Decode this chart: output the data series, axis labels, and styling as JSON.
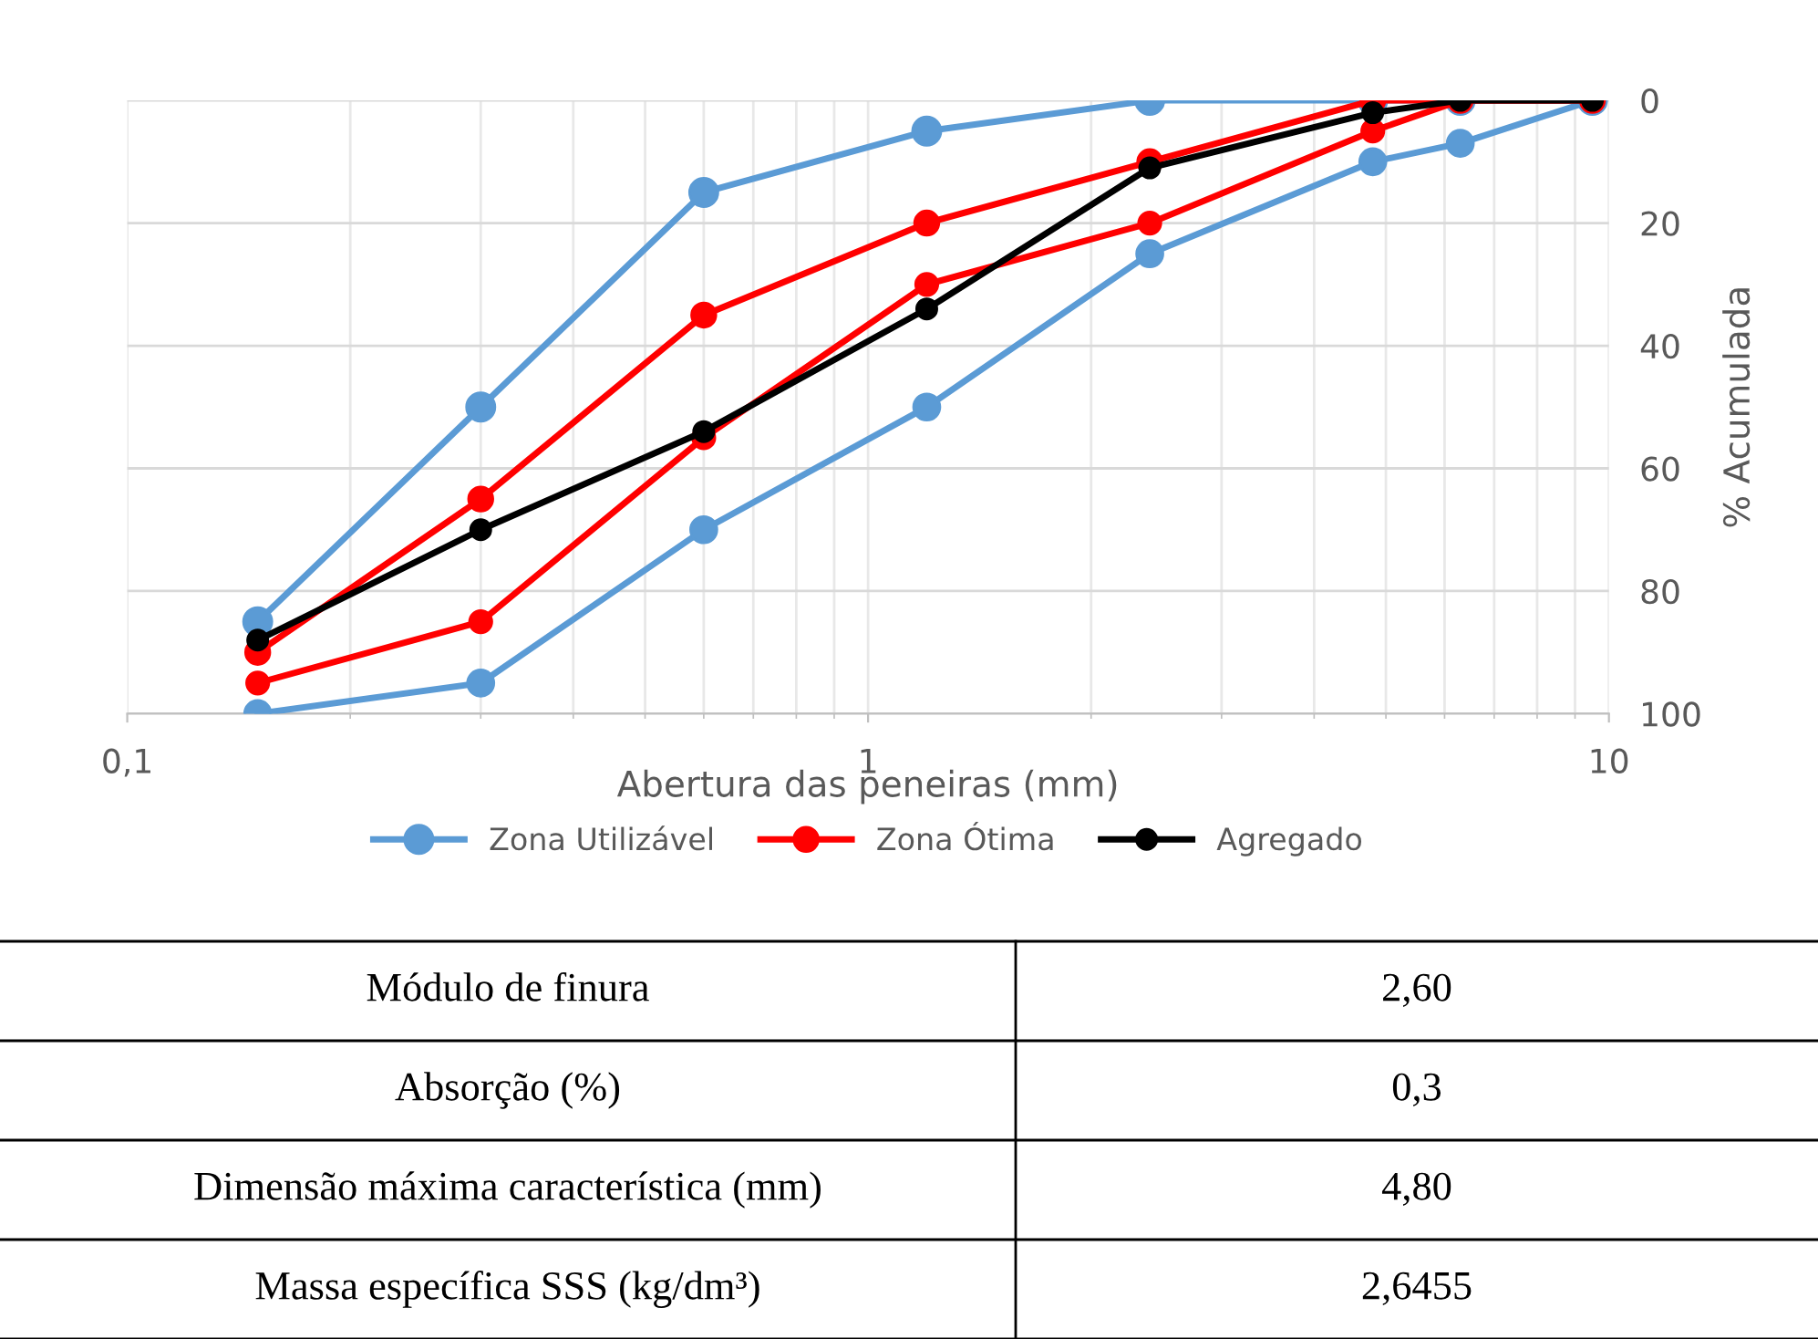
{
  "chart_data": {
    "type": "line",
    "xlabel": "Abertura das peneiras (mm)",
    "ylabel": "% Acumulada",
    "log": "x",
    "x": [
      0.15,
      0.3,
      0.6,
      1.2,
      2.4,
      4.8,
      6.3,
      9.5
    ],
    "xlim": [
      0.1,
      10
    ],
    "xticks": [
      {
        "value": 0.1,
        "label": "0,1"
      },
      1,
      10
    ],
    "ylim": [
      100,
      0
    ],
    "yticks": [
      0,
      20,
      40,
      60,
      80,
      100
    ],
    "grid": true,
    "legend": "bottom",
    "marker": "circle",
    "line_style": "solid",
    "series": [
      {
        "name": "Zona Utilizável",
        "color": "#5b9bd5",
        "values": [
          85,
          50,
          15,
          5,
          0,
          0,
          0,
          0
        ]
      },
      {
        "color": "#5b9bd5",
        "values": [
          100,
          95,
          70,
          50,
          25,
          10,
          7,
          0
        ]
      },
      {
        "name": "Zona Ótima",
        "color": "#ff0000",
        "values": [
          90,
          65,
          35,
          20,
          10,
          0,
          0,
          0
        ]
      },
      {
        "color": "#ff0000",
        "values": [
          95,
          85,
          55,
          30,
          20,
          5,
          0,
          0
        ]
      },
      {
        "name": "Agregado",
        "color": "#000000",
        "values": [
          88,
          70,
          54,
          34,
          11,
          2,
          0,
          0
        ]
      }
    ],
    "annotations": [
      "Módulo de finura",
      "2,60",
      "Absorção (%)",
      "0,3",
      "Dimensão máxima característica (mm)",
      "4,80",
      "Massa específica SSS (kg/dm³)",
      "2,6455"
    ]
  }
}
